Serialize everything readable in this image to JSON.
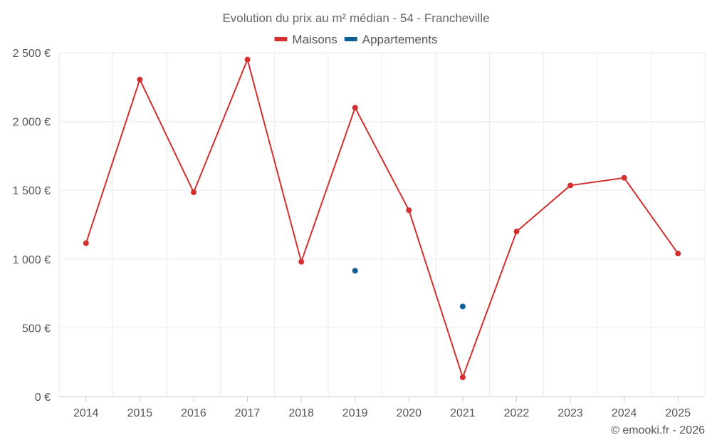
{
  "chart_data": {
    "type": "line",
    "title": "Evolution du prix au m² médian - 54 - Francheville",
    "xlabel": "",
    "ylabel": "",
    "categories": [
      "2014",
      "2015",
      "2016",
      "2017",
      "2018",
      "2019",
      "2020",
      "2021",
      "2022",
      "2023",
      "2024",
      "2025"
    ],
    "ylim": [
      0,
      2500
    ],
    "yticks": [
      0,
      500,
      1000,
      1500,
      2000,
      2500
    ],
    "ytick_labels": [
      "0 €",
      "500 €",
      "1 000 €",
      "1 500 €",
      "2 000 €",
      "2 500 €"
    ],
    "grid": true,
    "legend_position": "top-center",
    "series": [
      {
        "name": "Maisons",
        "color": "#d32f2f",
        "line": true,
        "values": [
          1115,
          2305,
          1485,
          2450,
          980,
          2100,
          1355,
          140,
          1200,
          1535,
          1590,
          1040
        ]
      },
      {
        "name": "Appartements",
        "color": "#0d5f96",
        "line": false,
        "values": [
          null,
          null,
          null,
          null,
          null,
          915,
          null,
          655,
          null,
          null,
          null,
          null
        ]
      }
    ]
  },
  "credit": "© emooki.fr - 2026"
}
